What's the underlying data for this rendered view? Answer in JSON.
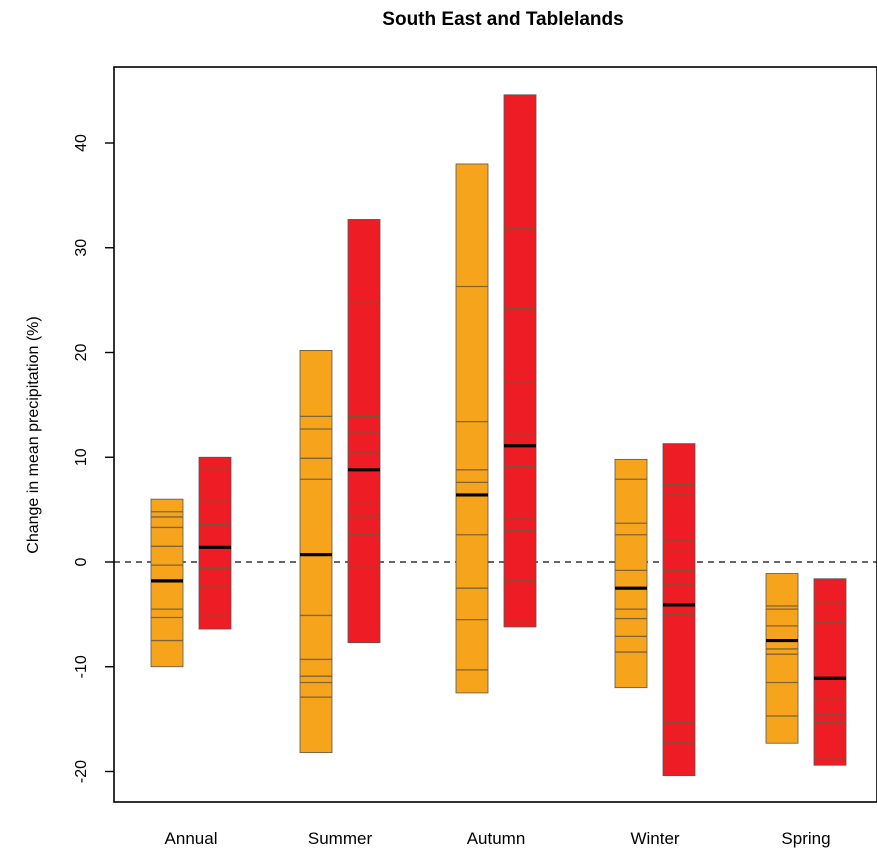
{
  "chart_data": {
    "type": "bar",
    "title": "South East and Tablelands",
    "ylabel": "Change in mean precipitation (%)",
    "xlabel": "",
    "ylim": [
      -23,
      47
    ],
    "yticks": [
      -20,
      -10,
      0,
      10,
      20,
      30,
      40
    ],
    "reference_line": 0,
    "grid": false,
    "categories": [
      "Annual",
      "Summer",
      "Autumn",
      "Winter",
      "Spring"
    ],
    "series": [
      {
        "color": "#f7a41d",
        "ranges": [
          {
            "min": -10,
            "max": 6,
            "median": -1.8,
            "members": [
              4.8,
              4.3,
              3.3,
              1.5,
              -0.3,
              -4.5,
              -5.3,
              -7.5
            ]
          },
          {
            "min": -18.2,
            "max": 20.2,
            "median": 0.7,
            "members": [
              13.9,
              12.7,
              9.9,
              7.9,
              -5.1,
              -9.3,
              -10.9,
              -11.5,
              -12.9
            ]
          },
          {
            "min": -12.5,
            "max": 38,
            "median": 6.4,
            "members": [
              26.3,
              13.4,
              8.8,
              7.6,
              2.6,
              -2.5,
              -5.5,
              -10.3
            ]
          },
          {
            "min": -12,
            "max": 9.8,
            "median": -2.5,
            "members": [
              7.9,
              3.7,
              2.6,
              -0.8,
              -4.5,
              -5.4,
              -7.1,
              -8.6
            ]
          },
          {
            "min": -17.3,
            "max": -1.1,
            "median": -7.5,
            "members": [
              -4.2,
              -4.5,
              -6.1,
              -8.3,
              -8.8,
              -11.5,
              -14.7
            ]
          }
        ]
      },
      {
        "color": "#ee1c24",
        "ranges": [
          {
            "min": -6.4,
            "max": 10,
            "median": 1.4,
            "members": [
              9,
              5.8,
              3.6,
              -0.6,
              -2.4,
              -5.1
            ]
          },
          {
            "min": -7.7,
            "max": 32.7,
            "median": 8.8,
            "members": [
              24.7,
              13.9,
              12.3,
              10.5,
              5.6,
              4.4,
              2.6,
              -0.5
            ]
          },
          {
            "min": -6.2,
            "max": 44.6,
            "median": 11.1,
            "members": [
              31.8,
              24.2,
              17.2,
              12.1,
              9.1,
              4.2,
              3,
              -1.8,
              -5.5
            ]
          },
          {
            "min": -20.4,
            "max": 11.3,
            "median": -4.1,
            "members": [
              7.4,
              6.5,
              2.1,
              1,
              -0.8,
              -2.2,
              -5,
              -15.3,
              -17.2
            ]
          },
          {
            "min": -19.4,
            "max": -1.6,
            "median": -11.1,
            "members": [
              -3.8,
              -5.8,
              -13.1,
              -14.6,
              -15.3,
              -18.7
            ]
          }
        ]
      }
    ]
  }
}
